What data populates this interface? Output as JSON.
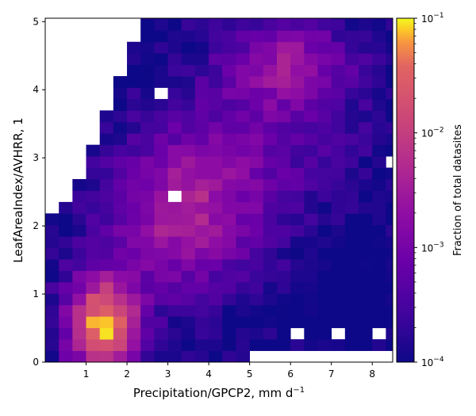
{
  "chart_data": {
    "type": "heatmap",
    "xlabel": "Precipitation/GPCP2,  mm d",
    "xlabel_superscript": "−1",
    "ylabel": "LeafAreaIndex/AVHRR,  1",
    "colorbar_label": "Fraction of total datasites",
    "colorbar_scale": "log",
    "colormap": "plasma",
    "clim": [
      0.0001,
      0.1
    ],
    "xlim": [
      0.0,
      8.5
    ],
    "ylim": [
      0.0,
      5.05
    ],
    "bin_width_x": 0.3333,
    "bin_height_y": 0.168,
    "x_ticks": [
      {
        "value": 1,
        "label": "1"
      },
      {
        "value": 2,
        "label": "2"
      },
      {
        "value": 3,
        "label": "3"
      },
      {
        "value": 4,
        "label": "4"
      },
      {
        "value": 5,
        "label": "5"
      },
      {
        "value": 6,
        "label": "6"
      },
      {
        "value": 7,
        "label": "7"
      },
      {
        "value": 8,
        "label": "8"
      }
    ],
    "y_ticks": [
      {
        "value": 0,
        "label": "0"
      },
      {
        "value": 1,
        "label": "1"
      },
      {
        "value": 2,
        "label": "2"
      },
      {
        "value": 3,
        "label": "3"
      },
      {
        "value": 4,
        "label": "4"
      },
      {
        "value": 5,
        "label": "5"
      }
    ],
    "colorbar_ticks": [
      {
        "exp": -4,
        "base": "10",
        "sup": "−4"
      },
      {
        "exp": -3,
        "base": "10",
        "sup": "−3"
      },
      {
        "exp": -2,
        "base": "10",
        "sup": "−2"
      },
      {
        "exp": -1,
        "base": "10",
        "sup": "−1"
      }
    ],
    "grid": false
  }
}
